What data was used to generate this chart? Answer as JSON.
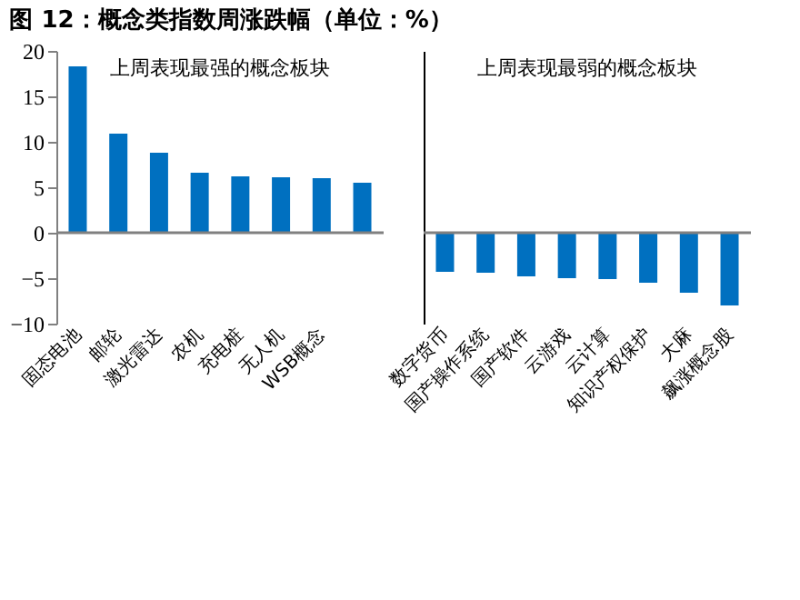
{
  "chart_data": [
    {
      "type": "bar",
      "title": "图 12：概念类指数周涨跌幅（单位：%）",
      "subtitle": "上周表现最强的概念板块",
      "categories": [
        "固态电池",
        "邮轮",
        "激光雷达",
        "农机",
        "充电桩",
        "无人机",
        "WSB概念",
        null
      ],
      "values": [
        18.3,
        10.9,
        8.8,
        6.6,
        6.2,
        6.1,
        6.0,
        5.5
      ],
      "color": "#0070c0",
      "ylim": [
        -10,
        20
      ],
      "yticks": [
        -10,
        -5,
        0,
        5,
        10,
        15,
        20
      ],
      "grid": false,
      "ref_lines": [
        {
          "axis": "y",
          "value": 0,
          "color": "#808080"
        }
      ]
    },
    {
      "type": "bar",
      "subtitle": "上周表现最弱的概念板块",
      "categories": [
        "数字货币",
        "国产操作系统",
        "国产软件",
        "云游戏",
        "云计算",
        "知识产权保护",
        "大麻",
        "飙涨概念股"
      ],
      "values": [
        -4.3,
        -4.4,
        -4.8,
        -5.0,
        -5.1,
        -5.5,
        -6.6,
        -8.0
      ],
      "color": "#0070c0",
      "ylim": [
        -10,
        20
      ],
      "grid": false,
      "tick_labels": "x",
      "ref_lines": [
        {
          "axis": "y",
          "value": 0,
          "color": "#808080"
        }
      ]
    }
  ]
}
